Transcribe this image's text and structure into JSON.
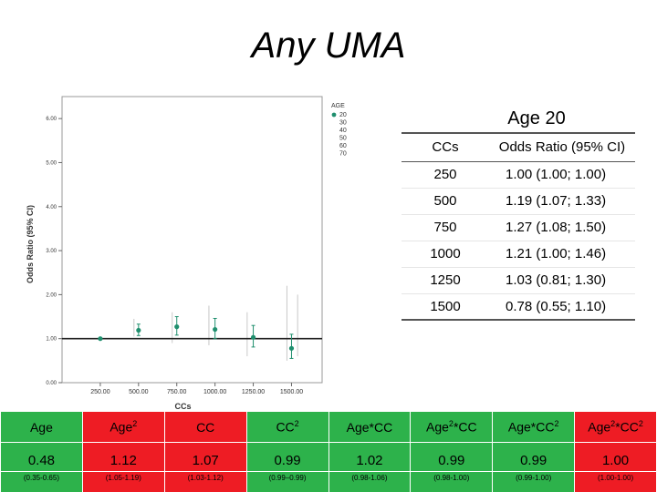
{
  "title": "Any UMA",
  "chart_data": {
    "type": "scatter",
    "ylabel": "Odds Ratio (95% CI)",
    "xlabel": "CCs",
    "x_ticks": [
      "250.00",
      "500.00",
      "750.00",
      "1000.00",
      "1250.00",
      "1500.00"
    ],
    "x_tick_values": [
      250,
      500,
      750,
      1000,
      1250,
      1500
    ],
    "y_ticks": [
      "0.00",
      "1.00",
      "2.00",
      "3.00",
      "4.00",
      "5.00",
      "6.00"
    ],
    "y_tick_values": [
      0,
      1,
      2,
      3,
      4,
      5,
      6
    ],
    "xlim": [
      0,
      1700
    ],
    "ylim": [
      0,
      6.5
    ],
    "reference_line": 1.0,
    "legend_title": "AGE",
    "legend_entries": [
      "20",
      "30",
      "40",
      "50",
      "60",
      "70"
    ],
    "legend_position": "top-right",
    "highlight_color": "#1f8f6e",
    "faint_color": "#c8c8c8",
    "series": [
      {
        "name": "20",
        "x": [
          250,
          500,
          750,
          1000,
          1250,
          1500
        ],
        "y": [
          1.0,
          1.19,
          1.27,
          1.21,
          1.03,
          0.78
        ],
        "lower": [
          1.0,
          1.07,
          1.08,
          1.0,
          0.81,
          0.55
        ],
        "upper": [
          1.0,
          1.33,
          1.5,
          1.46,
          1.3,
          1.1
        ]
      }
    ]
  },
  "age_panel": {
    "title": "Age 20",
    "headers": [
      "CCs",
      "Odds Ratio (95% CI)"
    ],
    "rows": [
      {
        "cc": "250",
        "ci": "1.00 (1.00; 1.00)"
      },
      {
        "cc": "500",
        "ci": "1.19 (1.07; 1.33)"
      },
      {
        "cc": "750",
        "ci": "1.27 (1.08; 1.50)"
      },
      {
        "cc": "1000",
        "ci": "1.21 (1.00; 1.46)"
      },
      {
        "cc": "1250",
        "ci": "1.03 (0.81; 1.30)"
      },
      {
        "cc": "1500",
        "ci": "0.78 (0.55; 1.10)"
      }
    ]
  },
  "coefficients": {
    "columns": [
      {
        "base": "Age",
        "sup": "",
        "value": "0.48",
        "ci": "(0.35-0.65)",
        "color": "green"
      },
      {
        "base": "Age",
        "sup": "2",
        "value": "1.12",
        "ci": "(1.05-1.19)",
        "color": "red"
      },
      {
        "base": "CC",
        "sup": "",
        "value": "1.07",
        "ci": "(1.03-1.12)",
        "color": "red"
      },
      {
        "base": "CC",
        "sup": "2",
        "value": "0.99",
        "ci": "(0.99–0.99)",
        "color": "green"
      },
      {
        "base": "Age*CC",
        "sup": "",
        "value": "1.02",
        "ci": "(0.98-1.06)",
        "color": "green"
      },
      {
        "base": "Age",
        "sup": "2",
        "suffix": "*CC",
        "value": "0.99",
        "ci": "(0.98-1.00)",
        "color": "green"
      },
      {
        "base": "Age*CC",
        "sup": "2",
        "value": "0.99",
        "ci": "(0.99-1.00)",
        "color": "green"
      },
      {
        "base": "Age",
        "sup": "2",
        "suffix": "*CC",
        "sup2": "2",
        "value": "1.00",
        "ci": "(1.00-1.00)",
        "color": "red"
      }
    ]
  }
}
